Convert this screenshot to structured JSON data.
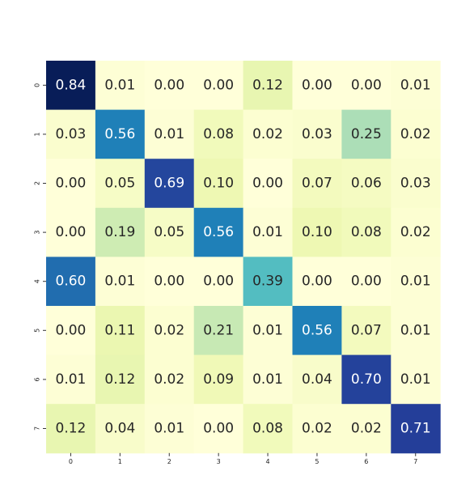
{
  "chart_data": {
    "type": "heatmap",
    "title": "",
    "xlabel": "",
    "ylabel": "",
    "x_tick_labels": [
      "0",
      "1",
      "2",
      "3",
      "4",
      "5",
      "6",
      "7"
    ],
    "y_tick_labels": [
      "0",
      "1",
      "2",
      "3",
      "4",
      "5",
      "6",
      "7"
    ],
    "values": [
      [
        0.84,
        0.01,
        0.0,
        0.0,
        0.12,
        0.0,
        0.0,
        0.01
      ],
      [
        0.03,
        0.56,
        0.01,
        0.08,
        0.02,
        0.03,
        0.25,
        0.02
      ],
      [
        0.0,
        0.05,
        0.69,
        0.1,
        0.0,
        0.07,
        0.06,
        0.03
      ],
      [
        0.0,
        0.19,
        0.05,
        0.56,
        0.01,
        0.1,
        0.08,
        0.02
      ],
      [
        0.6,
        0.01,
        0.0,
        0.0,
        0.39,
        0.0,
        0.0,
        0.01
      ],
      [
        0.0,
        0.11,
        0.02,
        0.21,
        0.01,
        0.56,
        0.07,
        0.01
      ],
      [
        0.01,
        0.12,
        0.02,
        0.09,
        0.01,
        0.04,
        0.7,
        0.01
      ],
      [
        0.12,
        0.04,
        0.01,
        0.0,
        0.08,
        0.02,
        0.02,
        0.71
      ]
    ],
    "value_format": "2 decimals",
    "colormap": "YlGnBu",
    "colormap_stops": [
      "#ffffd9",
      "#edf8b1",
      "#c7e9b4",
      "#7fcdbb",
      "#41b6c4",
      "#1d91c0",
      "#225ea8",
      "#253494",
      "#081d58"
    ],
    "vmin": 0.0,
    "vmax": 0.84,
    "colorbar": false,
    "grid": false,
    "legend": "none"
  }
}
